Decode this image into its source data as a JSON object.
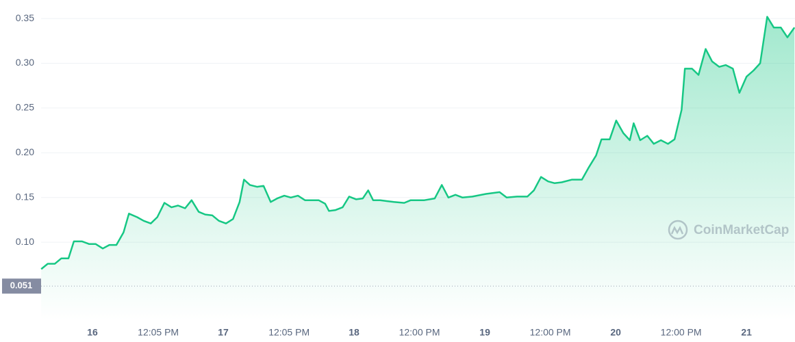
{
  "chart_data": {
    "type": "line",
    "series": [
      {
        "color": "#16c784",
        "x": [
          -9.4,
          -8.2,
          -6.9,
          -5.7,
          -4.4,
          -3.4,
          -1.9,
          -0.6,
          0.6,
          1.9,
          3.1,
          4.4,
          5.7,
          6.7,
          8.2,
          9.4,
          10.7,
          11.9,
          13.2,
          14.5,
          15.7,
          17.0,
          18.2,
          19.5,
          20.7,
          22.0,
          23.2,
          24.5,
          25.8,
          27.0,
          27.8,
          28.9,
          30.2,
          31.4,
          32.7,
          33.9,
          35.2,
          36.4,
          37.7,
          39.0,
          40.2,
          41.5,
          42.7,
          43.4,
          44.6,
          45.9,
          47.1,
          48.4,
          49.6,
          50.6,
          51.5,
          52.8,
          54.0,
          55.3,
          57.2,
          58.4,
          60.9,
          62.8,
          64.1,
          65.3,
          66.6,
          67.9,
          69.7,
          72.2,
          74.7,
          76.0,
          77.9,
          79.8,
          81.0,
          82.3,
          83.6,
          84.8,
          86.1,
          88.0,
          89.8,
          91.1,
          92.4,
          93.4,
          94.9,
          96.1,
          97.4,
          98.6,
          99.3,
          100.5,
          101.8,
          103.0,
          104.3,
          105.6,
          106.8,
          108.1,
          108.7,
          110.0,
          111.2,
          112.5,
          113.7,
          115.0,
          116.2,
          117.5,
          118.7,
          120.0,
          121.3,
          122.5,
          123.8,
          125.0,
          126.3,
          127.5,
          128.8
        ],
        "values": [
          0.07,
          0.076,
          0.076,
          0.082,
          0.082,
          0.101,
          0.101,
          0.098,
          0.098,
          0.093,
          0.097,
          0.097,
          0.111,
          0.132,
          0.128,
          0.124,
          0.121,
          0.128,
          0.144,
          0.139,
          0.141,
          0.138,
          0.147,
          0.134,
          0.131,
          0.13,
          0.124,
          0.121,
          0.126,
          0.145,
          0.17,
          0.164,
          0.162,
          0.163,
          0.145,
          0.149,
          0.152,
          0.15,
          0.152,
          0.147,
          0.147,
          0.147,
          0.143,
          0.135,
          0.136,
          0.139,
          0.151,
          0.148,
          0.149,
          0.158,
          0.147,
          0.147,
          0.146,
          0.145,
          0.144,
          0.147,
          0.147,
          0.149,
          0.164,
          0.15,
          0.153,
          0.15,
          0.151,
          0.154,
          0.156,
          0.15,
          0.151,
          0.151,
          0.158,
          0.173,
          0.168,
          0.166,
          0.167,
          0.17,
          0.17,
          0.184,
          0.197,
          0.215,
          0.215,
          0.236,
          0.222,
          0.214,
          0.233,
          0.214,
          0.219,
          0.21,
          0.214,
          0.21,
          0.215,
          0.248,
          0.294,
          0.294,
          0.287,
          0.316,
          0.302,
          0.296,
          0.298,
          0.294,
          0.267,
          0.285,
          0.292,
          0.3,
          0.352,
          0.34,
          0.34,
          0.329,
          0.34
        ]
      }
    ],
    "xlim": [
      -9.42,
      128.9
    ],
    "xticks": [
      {
        "value": 0,
        "label": "16"
      },
      {
        "value": 12.08,
        "label": "12:05 PM"
      },
      {
        "value": 24,
        "label": "17"
      },
      {
        "value": 36.08,
        "label": "12:05 PM"
      },
      {
        "value": 48,
        "label": "18"
      },
      {
        "value": 60,
        "label": "12:00 PM"
      },
      {
        "value": 72,
        "label": "19"
      },
      {
        "value": 84,
        "label": "12:00 PM"
      },
      {
        "value": 96,
        "label": "20"
      },
      {
        "value": 108,
        "label": "12:00 PM"
      },
      {
        "value": 120,
        "label": "21"
      }
    ],
    "ylim": [
      0.013,
      0.36
    ],
    "yticks": [
      {
        "value": 0.1,
        "label": "0.10"
      },
      0.15,
      {
        "value": 0.2,
        "label": "0.20"
      },
      0.25,
      {
        "value": 0.3,
        "label": "0.30"
      },
      0.35
    ],
    "grid": true,
    "reference_line": 0.051,
    "watermark": "CoinMarketCap"
  }
}
